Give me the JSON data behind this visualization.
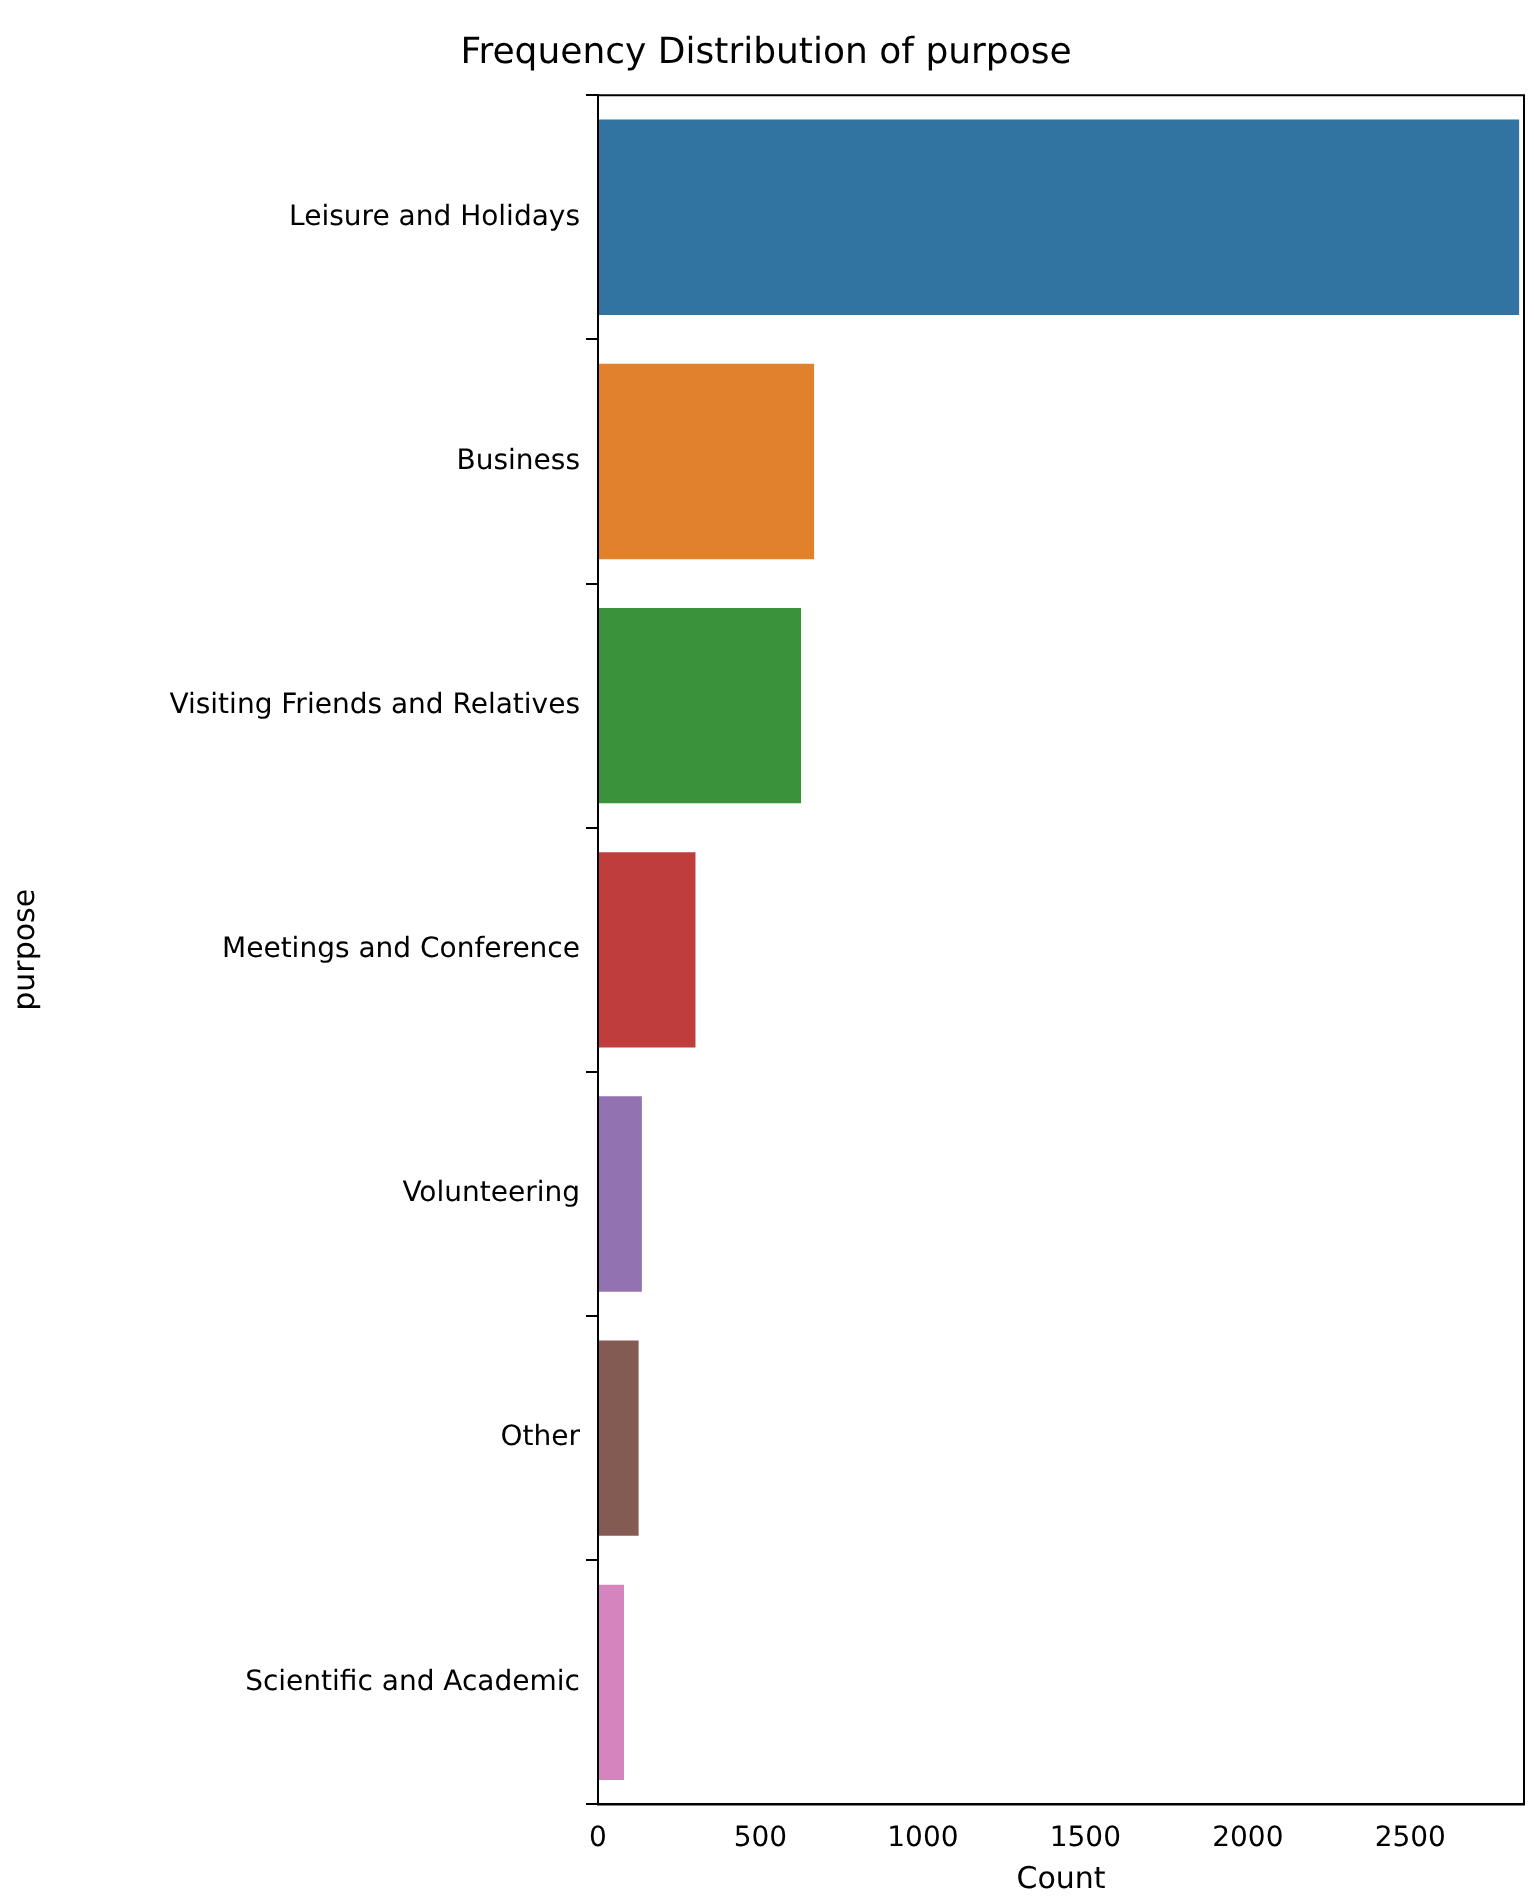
{
  "chart_data": {
    "type": "bar",
    "orientation": "horizontal",
    "title": "Frequency Distribution of purpose",
    "xlabel": "Count",
    "ylabel": "purpose",
    "categories": [
      "Leisure and Holidays",
      "Business",
      "Visiting Friends and Relatives",
      "Meetings and Conference",
      "Volunteering",
      "Other",
      "Scientific and Academic"
    ],
    "values": [
      2835,
      665,
      625,
      300,
      135,
      125,
      80
    ],
    "colors": [
      "#3274a1",
      "#e1812c",
      "#3a923a",
      "#c03d3e",
      "#9372b2",
      "#845b53",
      "#d684bd"
    ],
    "xlim": [
      0,
      2850
    ],
    "xticks": [
      0,
      500,
      1000,
      1500,
      2000,
      2500
    ],
    "grid": false,
    "legend": false
  }
}
